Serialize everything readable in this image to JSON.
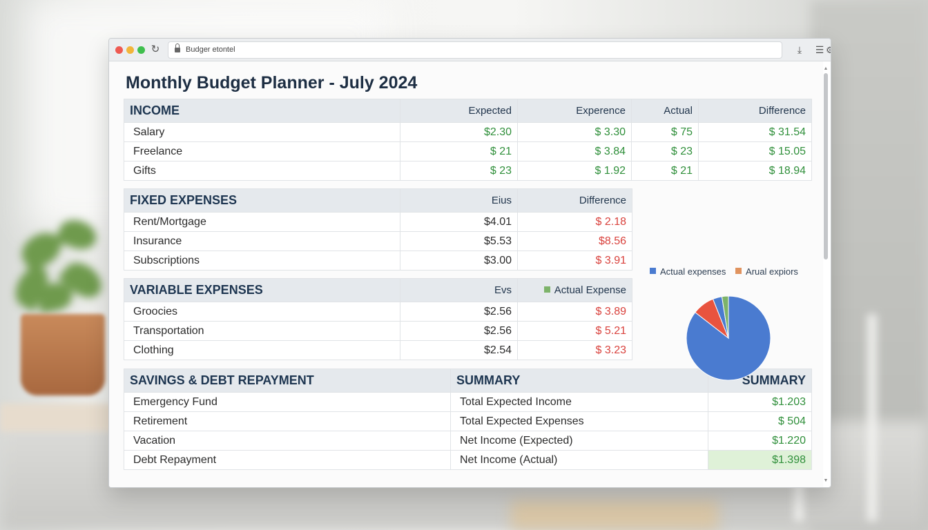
{
  "browser": {
    "url": "Budger etontel"
  },
  "page": {
    "title": "Monthly Budget Planner - July 2024"
  },
  "income": {
    "header": "INCOME",
    "columns": [
      "Expected",
      "Experence",
      "Actual",
      "Difference"
    ],
    "rows": [
      {
        "label": "Salary",
        "expected": "$2.30",
        "experence": "$ 3.30",
        "actual": "$ 75",
        "difference": "$ 31.54"
      },
      {
        "label": "Freelance",
        "expected": "$ 21",
        "experence": "$ 3.84",
        "actual": "$ 23",
        "difference": "$ 15.05"
      },
      {
        "label": "Gifts",
        "expected": "$ 23",
        "experence": "$ 1.92",
        "actual": "$ 21",
        "difference": "$ 18.94"
      }
    ]
  },
  "fixed_expenses": {
    "header": "FIXED EXPENSES",
    "columns": [
      "Eius",
      "Difference"
    ],
    "rows": [
      {
        "label": "Rent/Mortgage",
        "value": "$4.01",
        "difference": "$ 2.18"
      },
      {
        "label": "Insurance",
        "value": "$5.53",
        "difference": "$8.56"
      },
      {
        "label": "Subscriptions",
        "value": "$3.00",
        "difference": "$ 3.91"
      }
    ]
  },
  "variable_expenses": {
    "header": "VARIABLE EXPENSES",
    "columns": [
      "Evs",
      "Actual Expense"
    ],
    "legend_color": "#7db36a",
    "rows": [
      {
        "label": "Groocies",
        "value": "$2.56",
        "difference": "$ 3.89"
      },
      {
        "label": "Transportation",
        "value": "$2.56",
        "difference": "$ 5.21"
      },
      {
        "label": "Clothing",
        "value": "$2.54",
        "difference": "$ 3.23"
      }
    ]
  },
  "savings": {
    "header": "SAVINGS & DEBT REPAYMENT",
    "rows": [
      "Emergency Fund",
      "Retirement",
      "Vacation",
      "Debt Repayment"
    ]
  },
  "summary": {
    "header": "SUMMARY",
    "value_header": "SUMMARY",
    "rows": [
      {
        "label": "Total Expected Income",
        "value": "$1.203"
      },
      {
        "label": "Total Expected Expenses",
        "value": "$ 504"
      },
      {
        "label": "Net Income (Expected)",
        "value": "$1.220"
      },
      {
        "label": "Net Income (Actual)",
        "value": "$1.398"
      }
    ]
  },
  "chart_data": {
    "type": "pie",
    "legend": [
      {
        "name": "Actual expenses",
        "color": "#4a7bd0"
      },
      {
        "name": "Arual expiors",
        "color": "#e0935f"
      }
    ],
    "slices": [
      {
        "value": 0.855,
        "color": "#4a7bd0"
      },
      {
        "value": 0.085,
        "color": "#e8533f"
      },
      {
        "value": 0.035,
        "color": "#4a7bd0"
      },
      {
        "value": 0.025,
        "color": "#7db36a"
      }
    ]
  },
  "colors": {
    "positive": "#2f8f3a",
    "negative": "#d9413c",
    "header_bg": "#e5e9ed",
    "title": "#1d2e43"
  }
}
